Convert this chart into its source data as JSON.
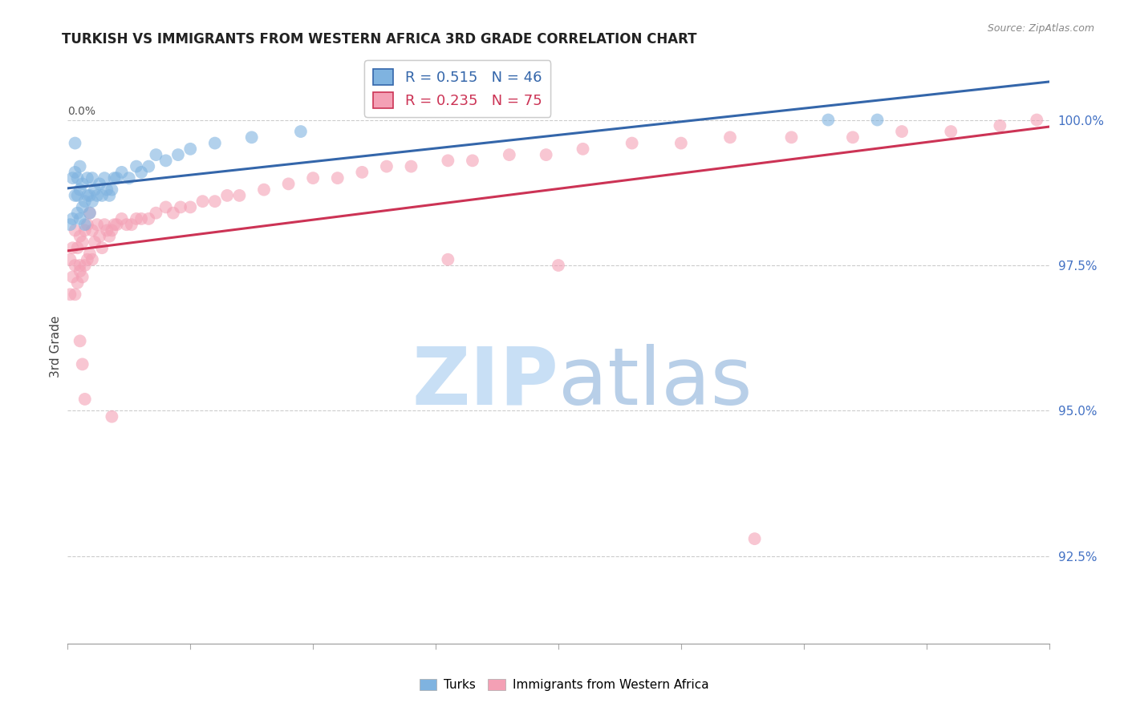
{
  "title": "TURKISH VS IMMIGRANTS FROM WESTERN AFRICA 3RD GRADE CORRELATION CHART",
  "source": "Source: ZipAtlas.com",
  "ylabel": "3rd Grade",
  "right_ytick_labels": [
    "100.0%",
    "97.5%",
    "95.0%",
    "92.5%"
  ],
  "right_ytick_vals": [
    1.0,
    0.975,
    0.95,
    0.925
  ],
  "legend_blue_label": "R = 0.515   N = 46",
  "legend_pink_label": "R = 0.235   N = 75",
  "legend_turks": "Turks",
  "legend_immigrants": "Immigrants from Western Africa",
  "blue_color": "#7fb3e0",
  "pink_color": "#f4a0b5",
  "blue_line_color": "#3466aa",
  "pink_line_color": "#cc3355",
  "background_color": "#ffffff",
  "watermark_zip_color": "#c8dff5",
  "watermark_atlas_color": "#b8cfe8",
  "xmin": 0.0,
  "xmax": 0.4,
  "ymin": 0.91,
  "ymax": 1.012,
  "turks_x": [
    0.001,
    0.002,
    0.002,
    0.003,
    0.003,
    0.003,
    0.004,
    0.004,
    0.004,
    0.005,
    0.005,
    0.005,
    0.006,
    0.006,
    0.007,
    0.007,
    0.008,
    0.008,
    0.009,
    0.009,
    0.01,
    0.01,
    0.011,
    0.012,
    0.013,
    0.014,
    0.015,
    0.016,
    0.017,
    0.018,
    0.019,
    0.02,
    0.022,
    0.025,
    0.028,
    0.03,
    0.033,
    0.036,
    0.04,
    0.045,
    0.05,
    0.06,
    0.075,
    0.095,
    0.31,
    0.33
  ],
  "turks_y": [
    0.982,
    0.99,
    0.983,
    0.996,
    0.991,
    0.987,
    0.987,
    0.99,
    0.984,
    0.992,
    0.988,
    0.983,
    0.989,
    0.985,
    0.986,
    0.982,
    0.987,
    0.99,
    0.987,
    0.984,
    0.99,
    0.986,
    0.988,
    0.987,
    0.989,
    0.987,
    0.99,
    0.988,
    0.987,
    0.988,
    0.99,
    0.99,
    0.991,
    0.99,
    0.992,
    0.991,
    0.992,
    0.994,
    0.993,
    0.994,
    0.995,
    0.996,
    0.997,
    0.998,
    1.0,
    1.0
  ],
  "immigrants_x": [
    0.001,
    0.001,
    0.002,
    0.002,
    0.003,
    0.003,
    0.003,
    0.004,
    0.004,
    0.005,
    0.005,
    0.005,
    0.006,
    0.006,
    0.007,
    0.007,
    0.008,
    0.008,
    0.009,
    0.009,
    0.01,
    0.01,
    0.011,
    0.012,
    0.013,
    0.014,
    0.015,
    0.016,
    0.017,
    0.018,
    0.019,
    0.02,
    0.022,
    0.024,
    0.026,
    0.028,
    0.03,
    0.033,
    0.036,
    0.04,
    0.043,
    0.046,
    0.05,
    0.055,
    0.06,
    0.065,
    0.07,
    0.08,
    0.09,
    0.1,
    0.11,
    0.12,
    0.13,
    0.14,
    0.155,
    0.165,
    0.18,
    0.195,
    0.21,
    0.23,
    0.25,
    0.27,
    0.295,
    0.32,
    0.34,
    0.36,
    0.38,
    0.395,
    0.155,
    0.2,
    0.005,
    0.006,
    0.007,
    0.018,
    0.28
  ],
  "immigrants_y": [
    0.976,
    0.97,
    0.973,
    0.978,
    0.97,
    0.975,
    0.981,
    0.972,
    0.978,
    0.974,
    0.98,
    0.975,
    0.973,
    0.979,
    0.975,
    0.981,
    0.976,
    0.982,
    0.977,
    0.984,
    0.976,
    0.981,
    0.979,
    0.982,
    0.98,
    0.978,
    0.982,
    0.981,
    0.98,
    0.981,
    0.982,
    0.982,
    0.983,
    0.982,
    0.982,
    0.983,
    0.983,
    0.983,
    0.984,
    0.985,
    0.984,
    0.985,
    0.985,
    0.986,
    0.986,
    0.987,
    0.987,
    0.988,
    0.989,
    0.99,
    0.99,
    0.991,
    0.992,
    0.992,
    0.993,
    0.993,
    0.994,
    0.994,
    0.995,
    0.996,
    0.996,
    0.997,
    0.997,
    0.997,
    0.998,
    0.998,
    0.999,
    1.0,
    0.976,
    0.975,
    0.962,
    0.958,
    0.952,
    0.949,
    0.928
  ]
}
